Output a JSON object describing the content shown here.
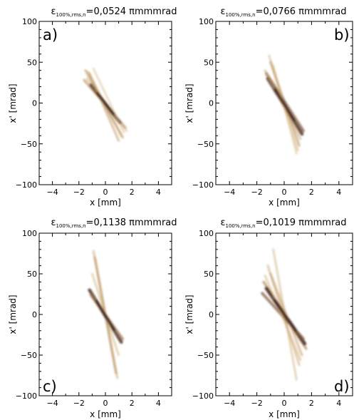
{
  "chart_data": [
    {
      "type": "density",
      "panel_label": "a)",
      "title": {
        "eps": "ε",
        "sub": "100%,rms,n",
        "value": "=0,0524 πmmmrad"
      },
      "xlabel": "x [mm]",
      "ylabel": "x' [mrad]",
      "xlim": [
        -5,
        5
      ],
      "ylim": [
        -100,
        100
      ],
      "xticks": [
        -4,
        -2,
        0,
        2,
        4
      ],
      "yticks": [
        -100,
        -50,
        0,
        50,
        100
      ],
      "xtick_labels": [
        "−4",
        "−2",
        "0",
        "2",
        "4"
      ],
      "ytick_labels": [
        "−100",
        "−50",
        "0",
        "50",
        "100"
      ],
      "bands": [
        {
          "x1": -1.5,
          "y1": 40,
          "x2": 1.3,
          "y2": -42,
          "intensity": 0.45
        },
        {
          "x1": -1.3,
          "y1": 38,
          "x2": 1.2,
          "y2": -40,
          "intensity": 0.35
        },
        {
          "x1": -1.6,
          "y1": 28,
          "x2": 1.5,
          "y2": -30,
          "intensity": 0.5
        },
        {
          "x1": -1.4,
          "y1": 30,
          "x2": 1.6,
          "y2": -34,
          "intensity": 0.3
        },
        {
          "x1": -1.1,
          "y1": 22,
          "x2": 1.1,
          "y2": -24,
          "intensity": 0.85
        },
        {
          "x1": -1.2,
          "y1": 36,
          "x2": 1.0,
          "y2": -46,
          "intensity": 0.4
        },
        {
          "x1": -0.9,
          "y1": 42,
          "x2": 1.4,
          "y2": -36,
          "intensity": 0.25
        }
      ]
    },
    {
      "type": "density",
      "panel_label": "b)",
      "title": {
        "eps": "ε",
        "sub": "100%,rms,n",
        "value": "=0,0766 πmmmrad"
      },
      "xlabel": "x [mm]",
      "ylabel": "x' [mrad]",
      "xlim": [
        -5,
        5
      ],
      "ylim": [
        -100,
        100
      ],
      "xticks": [
        -4,
        -2,
        0,
        2,
        4
      ],
      "yticks": [
        -100,
        -50,
        0,
        50,
        100
      ],
      "xtick_labels": [
        "−4",
        "−2",
        "0",
        "2",
        "4"
      ],
      "ytick_labels": [
        "−100",
        "−50",
        "0",
        "50",
        "100"
      ],
      "bands": [
        {
          "x1": -1.1,
          "y1": 58,
          "x2": 1.0,
          "y2": -58,
          "intensity": 0.3
        },
        {
          "x1": -1.0,
          "y1": 50,
          "x2": 1.1,
          "y2": -52,
          "intensity": 0.45
        },
        {
          "x1": -1.3,
          "y1": 36,
          "x2": 1.4,
          "y2": -34,
          "intensity": 0.7
        },
        {
          "x1": -1.2,
          "y1": 30,
          "x2": 1.3,
          "y2": -38,
          "intensity": 0.9
        },
        {
          "x1": -1.4,
          "y1": 40,
          "x2": 1.2,
          "y2": -44,
          "intensity": 0.35
        },
        {
          "x1": -0.8,
          "y1": 46,
          "x2": 0.9,
          "y2": -62,
          "intensity": 0.25
        }
      ]
    },
    {
      "type": "density",
      "panel_label": "c)",
      "title": {
        "eps": "ε",
        "sub": "100%,rms,n",
        "value": "=0,1138 πmmmrad"
      },
      "xlabel": "x [mm]",
      "ylabel": "x' [mrad]",
      "xlim": [
        -5,
        5
      ],
      "ylim": [
        -100,
        100
      ],
      "xticks": [
        -4,
        -2,
        0,
        2,
        4
      ],
      "yticks": [
        -100,
        -50,
        0,
        50,
        100
      ],
      "xtick_labels": [
        "−4",
        "−2",
        "0",
        "2",
        "4"
      ],
      "ytick_labels": [
        "−100",
        "−50",
        "0",
        "50",
        "100"
      ],
      "bands": [
        {
          "x1": -0.9,
          "y1": 78,
          "x2": 0.9,
          "y2": -78,
          "intensity": 0.35
        },
        {
          "x1": -0.8,
          "y1": 70,
          "x2": 0.8,
          "y2": -72,
          "intensity": 0.45
        },
        {
          "x1": -1.2,
          "y1": 30,
          "x2": 1.2,
          "y2": -34,
          "intensity": 0.9
        },
        {
          "x1": -1.1,
          "y1": 24,
          "x2": 1.3,
          "y2": -30,
          "intensity": 0.6
        },
        {
          "x1": -1.0,
          "y1": 50,
          "x2": 1.0,
          "y2": -50,
          "intensity": 0.3
        }
      ]
    },
    {
      "type": "density",
      "panel_label": "d)",
      "title": {
        "eps": "ε",
        "sub": "100%,rms,n",
        "value": "=0,1019 πmmmrad"
      },
      "xlabel": "x [mm]",
      "ylabel": "x' [mrad]",
      "xlim": [
        -5,
        5
      ],
      "ylim": [
        -100,
        100
      ],
      "xticks": [
        -4,
        -2,
        0,
        2,
        4
      ],
      "yticks": [
        -100,
        -50,
        0,
        50,
        100
      ],
      "xtick_labels": [
        "−4",
        "−2",
        "0",
        "2",
        "4"
      ],
      "ytick_labels": [
        "−100",
        "−50",
        "0",
        "50",
        "100"
      ],
      "bands": [
        {
          "x1": -0.8,
          "y1": 80,
          "x2": 0.9,
          "y2": -80,
          "intensity": 0.3
        },
        {
          "x1": -1.2,
          "y1": 60,
          "x2": 1.1,
          "y2": -62,
          "intensity": 0.35
        },
        {
          "x1": -1.5,
          "y1": 40,
          "x2": 1.6,
          "y2": -42,
          "intensity": 0.55
        },
        {
          "x1": -1.3,
          "y1": 32,
          "x2": 1.5,
          "y2": -36,
          "intensity": 0.95
        },
        {
          "x1": -1.6,
          "y1": 26,
          "x2": 1.4,
          "y2": -30,
          "intensity": 0.7
        },
        {
          "x1": -1.0,
          "y1": 50,
          "x2": 1.3,
          "y2": -50,
          "intensity": 0.4
        },
        {
          "x1": -1.4,
          "y1": 48,
          "x2": 1.2,
          "y2": -56,
          "intensity": 0.3
        }
      ]
    }
  ],
  "colors": {
    "low": "#f3dc9a",
    "mid": "#b48a5a",
    "high": "#3a1e1c",
    "axis": "#000000"
  }
}
